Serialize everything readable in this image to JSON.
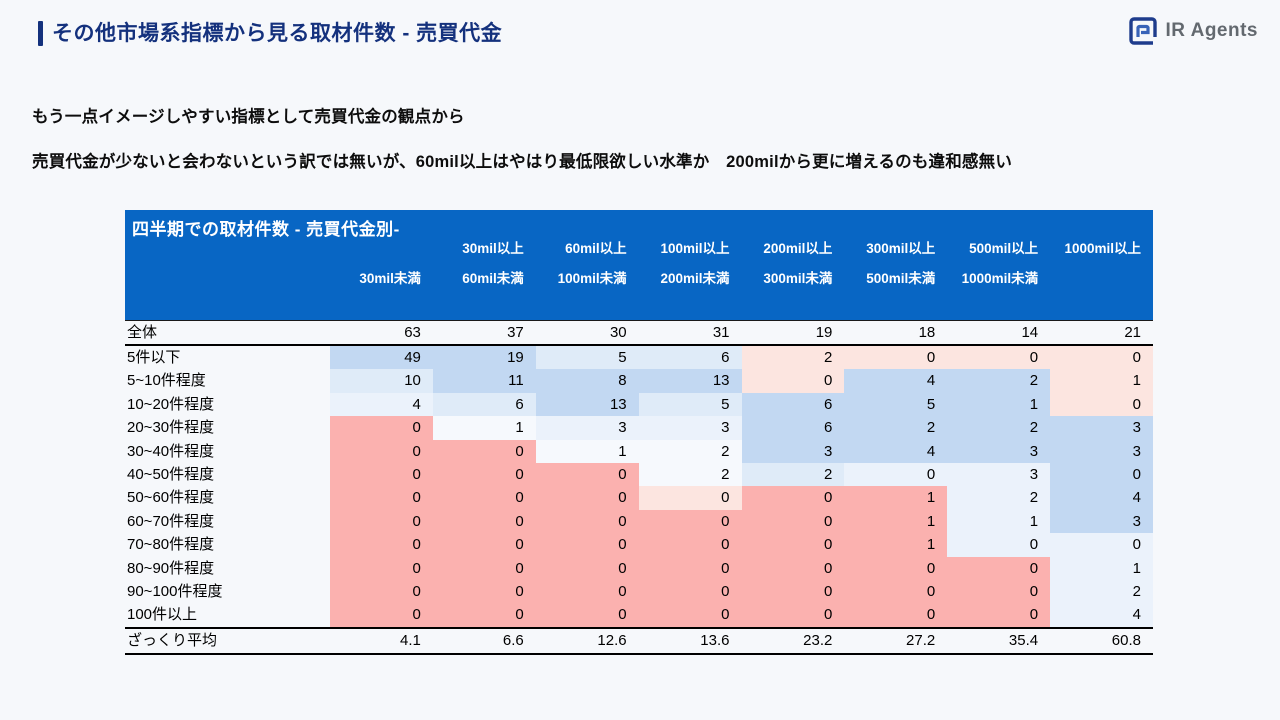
{
  "page": {
    "title": "その他市場系指標から見る取材件数 - 売買代金"
  },
  "logo": {
    "text": "IR Agents",
    "icon": "ir-agents-square-spiral"
  },
  "body": {
    "line1": "もう一点イメージしやすい指標として売買代金の観点から",
    "line2": "売買代金が少ないと会わないという訳では無いが、60mil以上はやはり最低限欲しい水準か　200milから更に増えるのも違和感無い"
  },
  "colors": {
    "slide_bg": "#F6F8FB",
    "accent_navy": "#14317D",
    "logo_gray": "#63696F",
    "table_header_bg": "#0866C4",
    "palette": {
      "b3": "#C2D8F2",
      "b2": "#DFEBF8",
      "b1": "#EBF2FB",
      "b0": "#F6F9FD",
      "r2": "#FBB1AF",
      "r1": "#FCE5E0",
      "none": "transparent"
    }
  },
  "table": {
    "title": "四半期での取材件数 - 売買代金別-",
    "col_headers": [
      {
        "top": "",
        "bottom": "30mil未満"
      },
      {
        "top": "30mil以上",
        "bottom": "60mil未満"
      },
      {
        "top": "60mil以上",
        "bottom": "100mil未満"
      },
      {
        "top": "100mil以上",
        "bottom": "200mil未満"
      },
      {
        "top": "200mil以上",
        "bottom": "300mil未満"
      },
      {
        "top": "300mil以上",
        "bottom": "500mil未満"
      },
      {
        "top": "500mil以上",
        "bottom": "1000mil未満"
      },
      {
        "top": "1000mil以上",
        "bottom": ""
      }
    ],
    "total_row": {
      "label": "全体",
      "values": [
        "63",
        "37",
        "30",
        "31",
        "19",
        "18",
        "14",
        "21"
      ]
    },
    "rows": [
      {
        "label": "5件以下",
        "values": [
          "49",
          "19",
          "5",
          "6",
          "2",
          "0",
          "0",
          "0"
        ],
        "colors": [
          "b3",
          "b3",
          "b2",
          "b2",
          "r1",
          "r1",
          "r1",
          "r1"
        ]
      },
      {
        "label": "5~10件程度",
        "values": [
          "10",
          "11",
          "8",
          "13",
          "0",
          "4",
          "2",
          "1"
        ],
        "colors": [
          "b2",
          "b3",
          "b3",
          "b3",
          "r1",
          "b3",
          "b3",
          "r1"
        ]
      },
      {
        "label": "10~20件程度",
        "values": [
          "4",
          "6",
          "13",
          "5",
          "6",
          "5",
          "1",
          "0"
        ],
        "colors": [
          "b1",
          "b2",
          "b3",
          "b2",
          "b3",
          "b3",
          "b3",
          "r1"
        ]
      },
      {
        "label": "20~30件程度",
        "values": [
          "0",
          "1",
          "3",
          "3",
          "6",
          "2",
          "2",
          "3"
        ],
        "colors": [
          "r2",
          "b0",
          "b1",
          "b1",
          "b3",
          "b3",
          "b3",
          "b3"
        ]
      },
      {
        "label": "30~40件程度",
        "values": [
          "0",
          "0",
          "1",
          "2",
          "3",
          "4",
          "3",
          "3"
        ],
        "colors": [
          "r2",
          "r2",
          "b0",
          "b0",
          "b3",
          "b3",
          "b3",
          "b3"
        ]
      },
      {
        "label": "40~50件程度",
        "values": [
          "0",
          "0",
          "0",
          "2",
          "2",
          "0",
          "3",
          "0"
        ],
        "colors": [
          "r2",
          "r2",
          "r2",
          "b0",
          "b2",
          "b1",
          "b1",
          "b3"
        ]
      },
      {
        "label": "50~60件程度",
        "values": [
          "0",
          "0",
          "0",
          "0",
          "0",
          "1",
          "2",
          "4"
        ],
        "colors": [
          "r2",
          "r2",
          "r2",
          "r1",
          "r2",
          "r2",
          "b1",
          "b3"
        ]
      },
      {
        "label": "60~70件程度",
        "values": [
          "0",
          "0",
          "0",
          "0",
          "0",
          "1",
          "1",
          "3"
        ],
        "colors": [
          "r2",
          "r2",
          "r2",
          "r2",
          "r2",
          "r2",
          "b1",
          "b3"
        ]
      },
      {
        "label": "70~80件程度",
        "values": [
          "0",
          "0",
          "0",
          "0",
          "0",
          "1",
          "0",
          "0"
        ],
        "colors": [
          "r2",
          "r2",
          "r2",
          "r2",
          "r2",
          "r2",
          "b1",
          "b1"
        ]
      },
      {
        "label": "80~90件程度",
        "values": [
          "0",
          "0",
          "0",
          "0",
          "0",
          "0",
          "0",
          "1"
        ],
        "colors": [
          "r2",
          "r2",
          "r2",
          "r2",
          "r2",
          "r2",
          "r2",
          "b1"
        ]
      },
      {
        "label": "90~100件程度",
        "values": [
          "0",
          "0",
          "0",
          "0",
          "0",
          "0",
          "0",
          "2"
        ],
        "colors": [
          "r2",
          "r2",
          "r2",
          "r2",
          "r2",
          "r2",
          "r2",
          "b1"
        ]
      },
      {
        "label": "100件以上",
        "values": [
          "0",
          "0",
          "0",
          "0",
          "0",
          "0",
          "0",
          "4"
        ],
        "colors": [
          "r2",
          "r2",
          "r2",
          "r2",
          "r2",
          "r2",
          "r2",
          "b1"
        ]
      }
    ],
    "avg_row": {
      "label": "ざっくり平均",
      "values": [
        "4.1",
        "6.6",
        "12.6",
        "13.6",
        "23.2",
        "27.2",
        "35.4",
        "60.8"
      ]
    }
  }
}
